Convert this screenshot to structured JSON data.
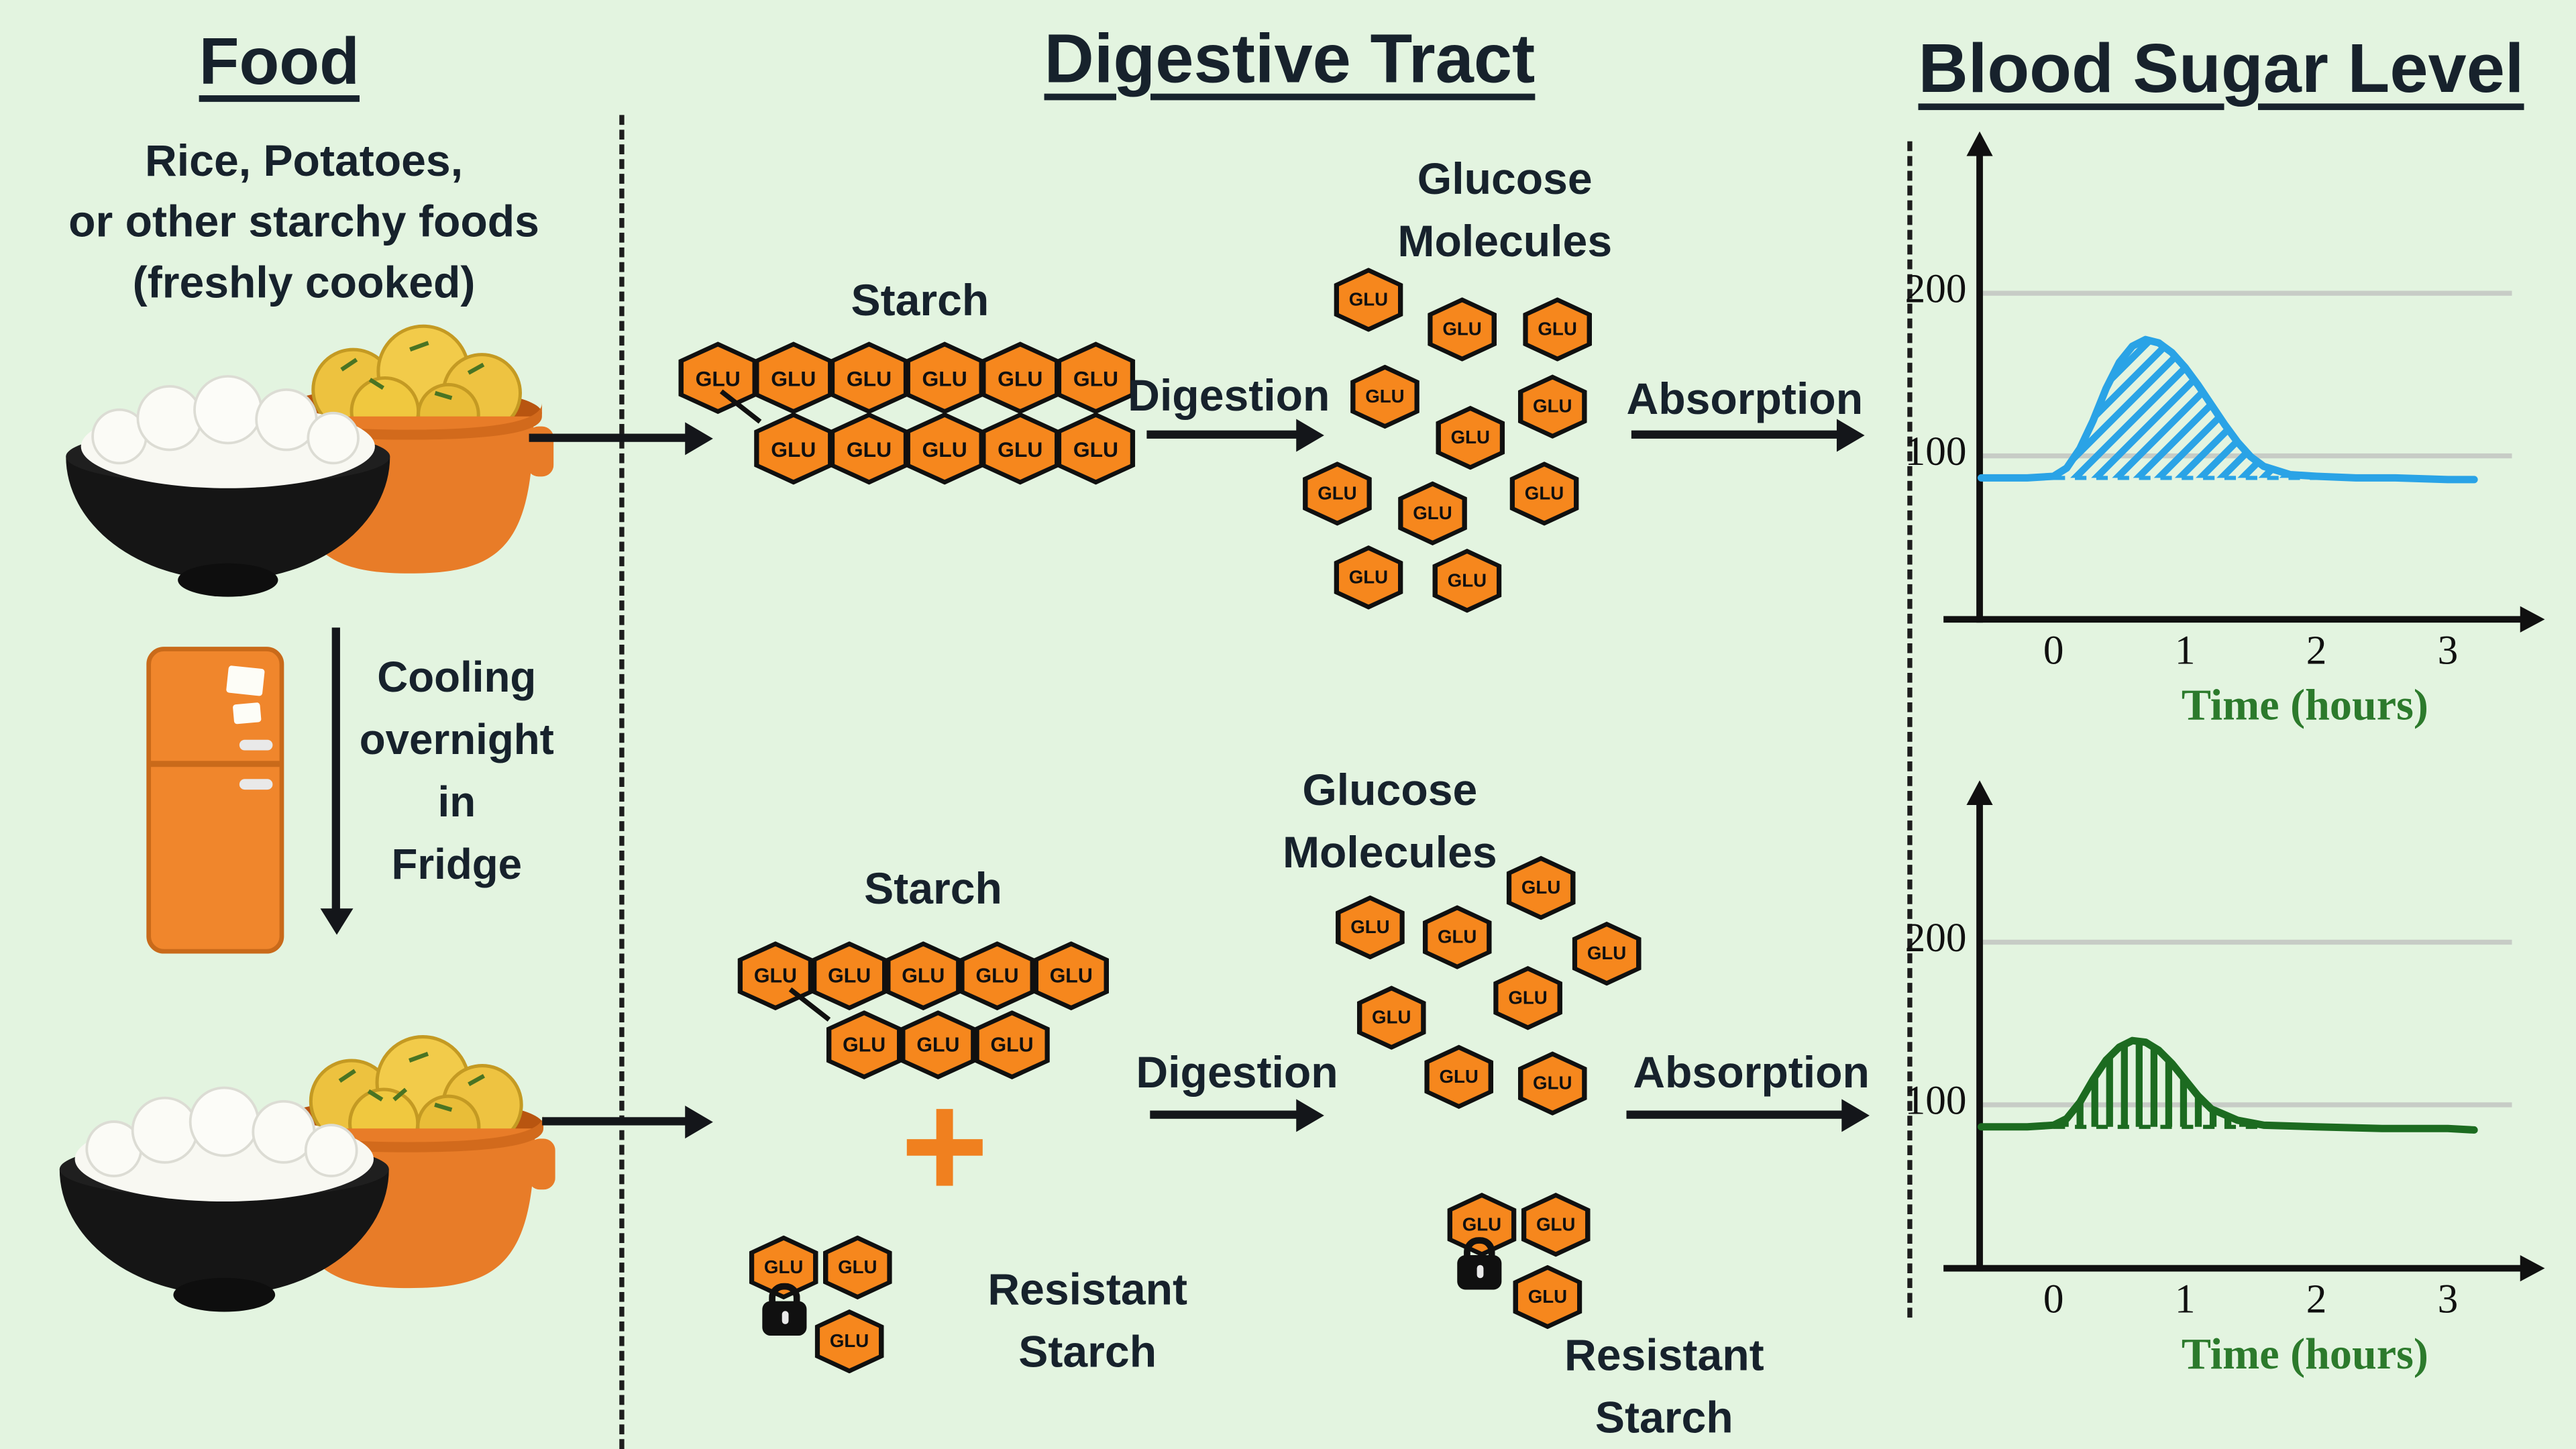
{
  "labels": {
    "glu": "GLU",
    "plus": "+"
  },
  "colors": {
    "background": "#e3f4e0",
    "hexagon_orange": "#f6871d",
    "fresh_curve_blue": "#2aa3e6",
    "cooled_curve_green": "#1c6b20",
    "axis_label_green": "#2c7a2c"
  },
  "food_column": {
    "title": "Food",
    "desc": [
      "Rice, Potatoes,",
      "or other starchy foods",
      "(freshly cooked)"
    ],
    "cooling": [
      "Cooling",
      "overnight",
      "in",
      "Fridge"
    ]
  },
  "digestive_column": {
    "title": "Digestive Tract",
    "top": {
      "starch": "Starch",
      "digestion": "Digestion",
      "glucose": [
        "Glucose",
        "Molecules"
      ],
      "absorption": "Absorption"
    },
    "bottom": {
      "starch": "Starch",
      "digestion": "Digestion",
      "glucose": [
        "Glucose",
        "Molecules"
      ],
      "absorption": "Absorption",
      "resistant_before": [
        "Resistant",
        "Starch"
      ],
      "resistant_after": [
        "Resistant",
        "Starch"
      ]
    }
  },
  "blood_column": {
    "title": "Blood Sugar Level"
  },
  "hexes": {
    "starch_top": {
      "size": 48,
      "dx": 46,
      "rows": [
        {
          "x": 413,
          "y": 208,
          "n": 6
        },
        {
          "x": 459,
          "y": 251,
          "n": 5
        }
      ]
    },
    "starch_bottom": {
      "size": 46,
      "dx": 45,
      "rows": [
        {
          "x": 449,
          "y": 573,
          "n": 5
        },
        {
          "x": 503,
          "y": 615,
          "n": 3
        }
      ]
    },
    "glucose_top": {
      "size": 42,
      "positions": [
        [
          812,
          163
        ],
        [
          869,
          181
        ],
        [
          927,
          181
        ],
        [
          822,
          222
        ],
        [
          874,
          247
        ],
        [
          924,
          228
        ],
        [
          793,
          281
        ],
        [
          851,
          293
        ],
        [
          919,
          281
        ],
        [
          812,
          332
        ],
        [
          872,
          334
        ]
      ]
    },
    "glucose_bottom": {
      "size": 42,
      "positions": [
        [
          813,
          545
        ],
        [
          866,
          551
        ],
        [
          917,
          521
        ],
        [
          957,
          561
        ],
        [
          826,
          600
        ],
        [
          909,
          588
        ],
        [
          867,
          636
        ],
        [
          924,
          640
        ]
      ]
    },
    "resistant_left": {
      "size": 42,
      "positions": [
        [
          456,
          752
        ],
        [
          501,
          752
        ],
        [
          496,
          797
        ]
      ]
    },
    "resistant_right": {
      "size": 42,
      "positions": [
        [
          881,
          726
        ],
        [
          926,
          726
        ],
        [
          921,
          770
        ]
      ]
    }
  },
  "chart_data": [
    {
      "type": "area",
      "x": [
        -0.55,
        -0.2,
        0,
        0.1,
        0.2,
        0.3,
        0.4,
        0.5,
        0.6,
        0.7,
        0.8,
        0.9,
        1.0,
        1.1,
        1.2,
        1.3,
        1.4,
        1.5,
        1.6,
        1.8,
        2.0,
        2.3,
        2.6,
        3.0,
        3.2
      ],
      "y": [
        87,
        87,
        88,
        93,
        105,
        122,
        142,
        158,
        168,
        172,
        170,
        164,
        155,
        144,
        132,
        120,
        109,
        100,
        94,
        89,
        88,
        87,
        87,
        86,
        86
      ],
      "baseline": 87,
      "color": "#2aa3e6",
      "hatch": "diagonal",
      "yticks": [
        "200",
        "100"
      ],
      "xticks": [
        "0",
        "1",
        "2",
        "3"
      ],
      "xlabel": "Time (hours)",
      "xlim": [
        -0.55,
        3.3
      ],
      "ylim": [
        0,
        230
      ],
      "grid": "horizontal"
    },
    {
      "type": "area",
      "x": [
        -0.55,
        -0.2,
        0,
        0.1,
        0.2,
        0.3,
        0.4,
        0.5,
        0.6,
        0.7,
        0.8,
        0.9,
        1.0,
        1.1,
        1.2,
        1.4,
        1.6,
        2.0,
        2.5,
        3.0,
        3.2
      ],
      "y": [
        87,
        87,
        88,
        92,
        102,
        116,
        128,
        136,
        140,
        139,
        134,
        126,
        116,
        106,
        98,
        91,
        88,
        87,
        86,
        86,
        85
      ],
      "baseline": 87,
      "color": "#1c6b20",
      "hatch": "vertical",
      "yticks": [
        "200",
        "100"
      ],
      "xticks": [
        "0",
        "1",
        "2",
        "3"
      ],
      "xlabel": "Time (hours)",
      "xlim": [
        -0.55,
        3.3
      ],
      "ylim": [
        0,
        230
      ],
      "grid": "horizontal"
    }
  ]
}
